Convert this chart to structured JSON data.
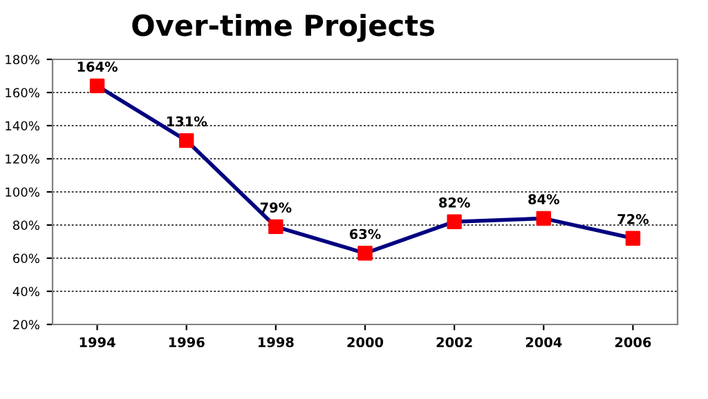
{
  "chart_data": {
    "type": "line",
    "title": "Over-time Projects",
    "categories": [
      "1994",
      "1996",
      "1998",
      "2000",
      "2002",
      "2004",
      "2006"
    ],
    "series": [
      {
        "color": "#000080",
        "colors": [
          "#ff0000",
          "#ff0000",
          "#ff0000",
          "#ff0000",
          "#ff0000",
          "#ff0000",
          "#ff0000"
        ],
        "values": [
          164,
          131,
          79,
          63,
          82,
          84,
          72
        ],
        "value_labels": [
          "164%",
          "131%",
          "79%",
          "63%",
          "82%",
          "84%",
          "72%"
        ]
      }
    ],
    "ylim": [
      20,
      180
    ],
    "yticks": [
      {
        "value": 20,
        "label": "20%"
      },
      {
        "value": 40,
        "label": "40%"
      },
      {
        "value": 60,
        "label": "60%"
      },
      {
        "value": 80,
        "label": "80%"
      },
      {
        "value": 100,
        "label": "100%"
      },
      {
        "value": 120,
        "label": "120%"
      },
      {
        "value": 140,
        "label": "140%"
      },
      {
        "value": 160,
        "label": "160%"
      },
      {
        "value": 180,
        "label": "180%"
      }
    ],
    "grid": "y",
    "marker": "square",
    "line_style": "solid",
    "legend": false
  }
}
